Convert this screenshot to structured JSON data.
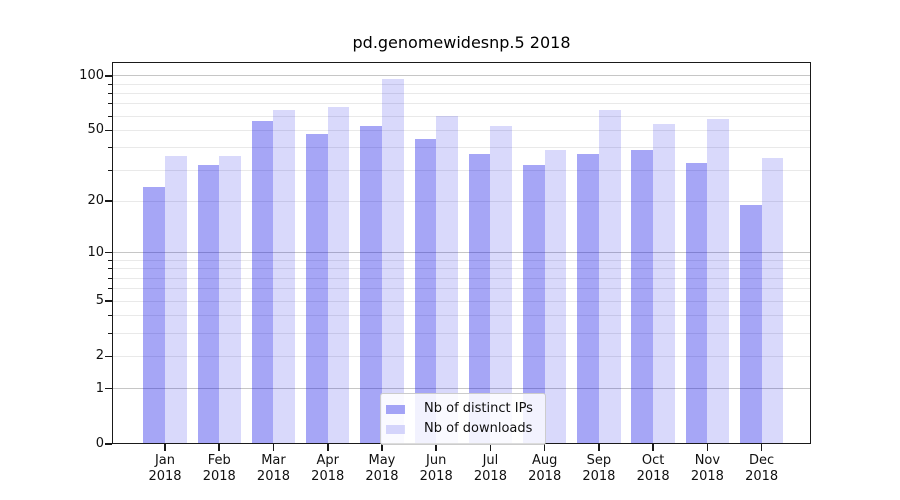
{
  "title": "pd.genomewidesnp.5 2018",
  "legend": {
    "entries": [
      {
        "label": "Nb of distinct IPs"
      },
      {
        "label": "Nb of downloads"
      }
    ]
  },
  "colors": {
    "bar_distinct_ips": "rgba(0,0,230,0.35)",
    "bar_downloads": "rgba(0,0,230,0.15)",
    "grid_major": "#c6c6c6",
    "grid_minor": "#e9e9e9",
    "spine": "#1a1a1a",
    "legend_border": "#cccccc",
    "text": "#111111"
  },
  "chart_data": {
    "type": "bar",
    "title": "pd.genomewidesnp.5 2018",
    "categories": [
      "Jan 2018",
      "Feb 2018",
      "Mar 2018",
      "Apr 2018",
      "May 2018",
      "Jun 2018",
      "Jul 2018",
      "Aug 2018",
      "Sep 2018",
      "Oct 2018",
      "Nov 2018",
      "Dec 2018"
    ],
    "series": [
      {
        "name": "Nb of distinct IPs",
        "values": [
          24,
          32,
          56,
          48,
          53,
          45,
          37,
          32,
          37,
          39,
          33,
          19
        ]
      },
      {
        "name": "Nb of downloads",
        "values": [
          36,
          36,
          65,
          67,
          96,
          60,
          53,
          39,
          65,
          54,
          58,
          35
        ]
      }
    ],
    "xlabel": "",
    "ylabel": "",
    "yscale": "log1p (pixel position proportional to log10(value+1), 0 at baseline)",
    "ylim": [
      0,
      119
    ],
    "y_tick_values": [
      0,
      1,
      2,
      5,
      10,
      20,
      50,
      100
    ],
    "y_tick_labels": [
      "0",
      "1",
      "2",
      "5",
      "10",
      "20",
      "50",
      "100"
    ],
    "y_major_grid_values": [
      1,
      10,
      100
    ],
    "y_minor_grid_values": [
      2,
      3,
      4,
      5,
      6,
      7,
      8,
      9,
      20,
      30,
      40,
      50,
      60,
      70,
      80,
      90
    ],
    "grid": "on (horizontal major + minor)",
    "legend_position": "lower center inside axes",
    "bar_layout": "grouped, 2 bars per month, distinct-IPs left of tick, downloads right of tick"
  }
}
